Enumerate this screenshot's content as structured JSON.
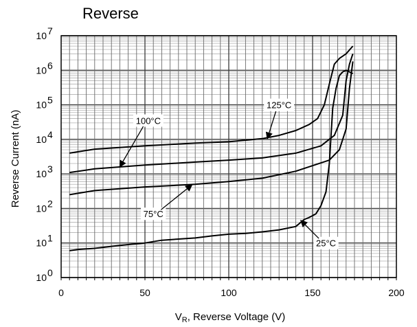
{
  "chart_data": {
    "type": "line",
    "title": "Reverse",
    "xlabel_main": "V",
    "xlabel_sub": "R",
    "xlabel_rest": ", Reverse Voltage (V)",
    "ylabel": "Reverse Current (nA)",
    "xlim": [
      0,
      200
    ],
    "ylim_log10": [
      0,
      7
    ],
    "y_scale": "log",
    "grid": true,
    "x_ticks": [
      0,
      50,
      100,
      150,
      200
    ],
    "x_tick_labels": [
      "0",
      "50",
      "100",
      "150",
      "200"
    ],
    "y_tick_exponents": [
      0,
      1,
      2,
      3,
      4,
      5,
      6,
      7
    ],
    "y_tick_base": "10",
    "series": [
      {
        "name": "125°C",
        "x": [
          5,
          20,
          50,
          80,
          100,
          120,
          130,
          140,
          148,
          153,
          157,
          160,
          163,
          166,
          170,
          174
        ],
        "y": [
          4000,
          5200,
          6500,
          7800,
          8500,
          10500,
          13000,
          18000,
          27000,
          40000,
          100000,
          400000,
          1500000,
          2200000,
          3000000,
          5000000
        ]
      },
      {
        "name": "100°C",
        "x": [
          5,
          20,
          50,
          80,
          100,
          120,
          140,
          155,
          163,
          168,
          170,
          172,
          174
        ],
        "y": [
          1100,
          1400,
          1800,
          2200,
          2500,
          2900,
          4000,
          6500,
          13000,
          50000,
          500000,
          1500000,
          3000000
        ]
      },
      {
        "name": "75°C",
        "x": [
          5,
          20,
          50,
          80,
          100,
          120,
          140,
          160,
          166,
          170,
          172,
          174
        ],
        "y": [
          250,
          330,
          420,
          500,
          600,
          750,
          1200,
          2500,
          5000,
          20000,
          300000,
          1800000
        ]
      },
      {
        "name": "25°C",
        "x": [
          5,
          10,
          20,
          30,
          40,
          50,
          60,
          70,
          80,
          90,
          100,
          110,
          120,
          130,
          140,
          145,
          148,
          152,
          155,
          158,
          160,
          162,
          164,
          166,
          168,
          170,
          172,
          174
        ],
        "y": [
          6,
          6.5,
          7,
          8,
          9,
          10,
          12,
          13,
          14,
          16,
          18,
          19,
          21,
          24,
          30,
          48,
          55,
          70,
          120,
          300,
          2000,
          80000,
          300000,
          700000,
          900000,
          1000000,
          900000,
          800000
        ]
      }
    ],
    "annotations": [
      {
        "text": "125°C",
        "label_x": 130,
        "label_y": 100000,
        "arrow_x": 123,
        "arrow_y": 10500
      },
      {
        "text": "100°C",
        "label_x": 52,
        "label_y": 35000,
        "arrow_x": 35,
        "arrow_y": 1600
      },
      {
        "text": "75°C",
        "label_x": 55,
        "label_y": 70,
        "arrow_x": 78,
        "arrow_y": 480
      },
      {
        "text": "25°C",
        "label_x": 158,
        "label_y": 10,
        "arrow_x": 143,
        "arrow_y": 45
      }
    ]
  }
}
